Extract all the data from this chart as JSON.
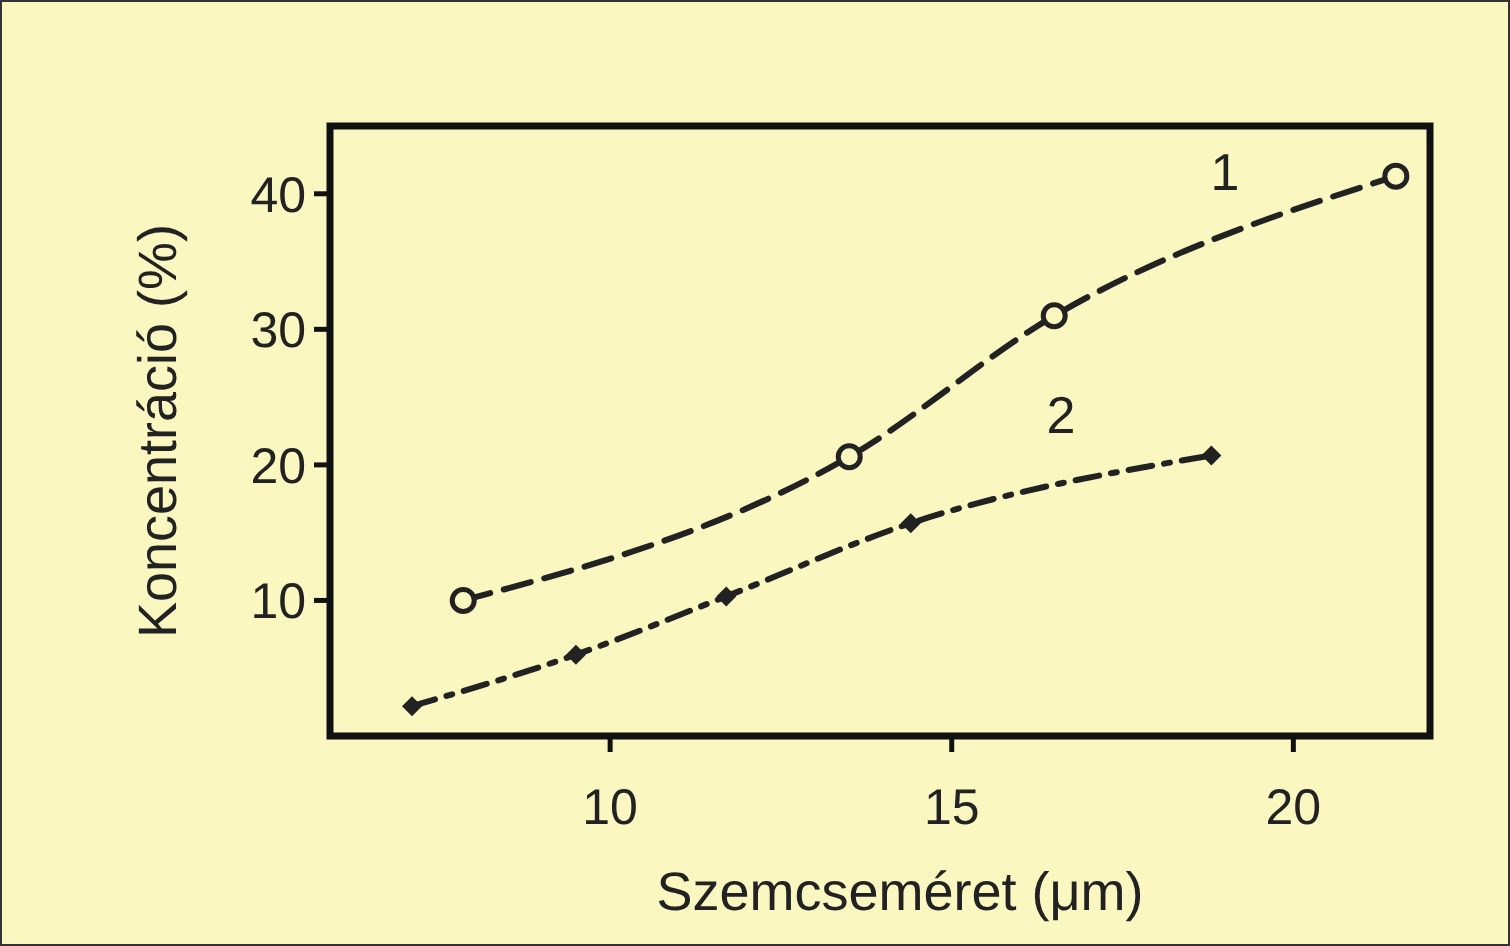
{
  "chart_data": {
    "type": "line",
    "xlabel": "Szemcseméret (μm)",
    "ylabel": "Koncentráció (%)",
    "xlim": [
      5.9,
      22
    ],
    "xticks": [
      10,
      15,
      20
    ],
    "ylim": [
      0,
      45
    ],
    "yticks": [
      10,
      20,
      30,
      40
    ],
    "grid": false,
    "series": [
      {
        "name": "1",
        "color": "#222222",
        "x": [
          7.85,
          13.5,
          16.5,
          21.5
        ],
        "values": [
          10,
          20.6,
          31,
          41.3
        ],
        "marker": "circle",
        "line_style": "dashed"
      },
      {
        "name": "2",
        "color": "#222222",
        "x": [
          7.1,
          9.5,
          11.7,
          14.4,
          18.8
        ],
        "values": [
          2.2,
          6,
          10.3,
          15.7,
          20.7
        ],
        "marker": "diamond",
        "line_style": "dashdot"
      }
    ]
  }
}
